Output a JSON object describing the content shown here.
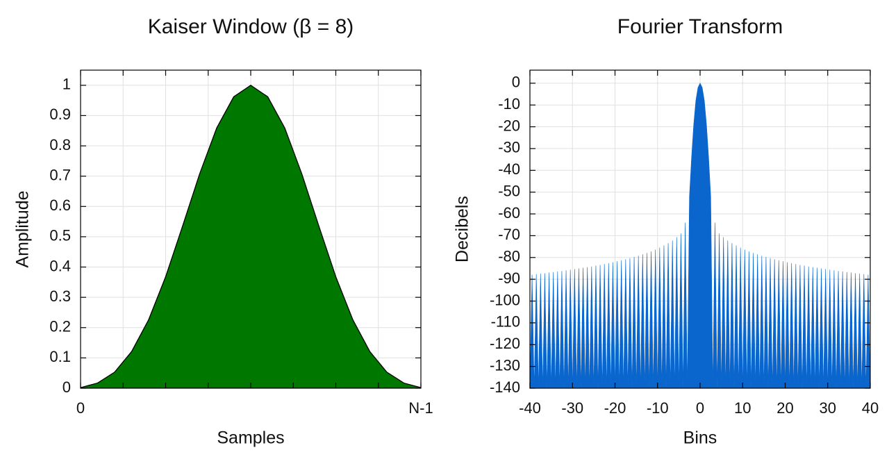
{
  "chart_data": [
    {
      "type": "area",
      "title": "Kaiser Window (β = 8)",
      "xlabel": "Samples",
      "ylabel": "Amplitude",
      "x": [
        0,
        0.05,
        0.1,
        0.15,
        0.2,
        0.25,
        0.3,
        0.35,
        0.4,
        0.45,
        0.5,
        0.55,
        0.6,
        0.65,
        0.7,
        0.75,
        0.8,
        0.85,
        0.9,
        0.95,
        1
      ],
      "values": [
        0.002,
        0.017,
        0.053,
        0.121,
        0.226,
        0.368,
        0.536,
        0.708,
        0.859,
        0.962,
        1,
        0.962,
        0.859,
        0.708,
        0.536,
        0.368,
        0.226,
        0.121,
        0.053,
        0.017,
        0.002
      ],
      "color": "#007800",
      "edge_color": "#000000",
      "xlim": [
        0,
        1
      ],
      "xticks": [
        0,
        0.125,
        0.25,
        0.375,
        0.5,
        0.625,
        0.75,
        0.875,
        1
      ],
      "xtick_labels": [
        "0",
        null,
        null,
        null,
        null,
        null,
        null,
        null,
        "N-1"
      ],
      "ylim": [
        0,
        1.05
      ],
      "yticks": [
        0,
        0.1,
        0.2,
        0.3,
        0.4,
        0.5,
        0.6,
        0.7,
        0.8,
        0.9,
        1
      ],
      "grid": true
    },
    {
      "type": "area",
      "title": "Fourier Transform",
      "xlabel": "Bins",
      "ylabel": "Decibels",
      "x": [
        -40,
        -39.5,
        -39,
        -38.5,
        -38,
        -37.5,
        -37,
        -36.5,
        -36,
        -35.5,
        -35,
        -34.5,
        -34,
        -33.5,
        -33,
        -32.5,
        -32,
        -31.5,
        -31,
        -30.5,
        -30,
        -29.5,
        -29,
        -28.5,
        -28,
        -27.5,
        -27,
        -26.5,
        -26,
        -25.5,
        -25,
        -24.5,
        -24,
        -23.5,
        -23,
        -22.5,
        -22,
        -21.5,
        -21,
        -20.5,
        -20,
        -19.5,
        -19,
        -18.5,
        -18,
        -17.5,
        -17,
        -16.5,
        -16,
        -15.5,
        -15,
        -14.5,
        -14,
        -13.5,
        -13,
        -12.5,
        -12,
        -11.5,
        -11,
        -10.5,
        -10,
        -9.5,
        -9,
        -8.5,
        -8,
        -7.5,
        -7,
        -6.5,
        -6,
        -5.5,
        -5,
        -4.5,
        -4,
        -3.5,
        -3,
        -2.5,
        -2,
        -1.5,
        -1,
        -0.5,
        0,
        0.5,
        1,
        1.5,
        2,
        2.5,
        3,
        3.5,
        4,
        4.5,
        5,
        5.5,
        6,
        6.5,
        7,
        7.5,
        8,
        8.5,
        9,
        9.5,
        10,
        10.5,
        11,
        11.5,
        12,
        12.5,
        13,
        13.5,
        14,
        14.5,
        15,
        15.5,
        16,
        16.5,
        17,
        17.5,
        18,
        18.5,
        19,
        19.5,
        20,
        20.5,
        21,
        21.5,
        22,
        22.5,
        23,
        23.5,
        24,
        24.5,
        25,
        25.5,
        26,
        26.5,
        27,
        27.5,
        28,
        28.5,
        29,
        29.5,
        30,
        30.5,
        31,
        31.5,
        32,
        32.5,
        33,
        33.5,
        34,
        34.5,
        35,
        35.5,
        36,
        36.5,
        37,
        37.5,
        38,
        38.5,
        39,
        39.5,
        40
      ],
      "values": [
        -140,
        -87.9,
        -140,
        -87.6,
        -140,
        -87.4,
        -140,
        -87.2,
        -140,
        -86.9,
        -140,
        -86.7,
        -140,
        -86.4,
        -140,
        -86.2,
        -140,
        -85.9,
        -140,
        -85.6,
        -140,
        -85.3,
        -140,
        -85.0,
        -140,
        -84.7,
        -140,
        -84.4,
        -140,
        -84.1,
        -140,
        -83.7,
        -140,
        -83.4,
        -140,
        -83.0,
        -140,
        -82.6,
        -140,
        -82.2,
        -140,
        -81.7,
        -140,
        -81.3,
        -140,
        -80.8,
        -140,
        -80.3,
        -140,
        -79.7,
        -140,
        -79.2,
        -140,
        -78.5,
        -140,
        -77.9,
        -140,
        -77.2,
        -140,
        -76.4,
        -140,
        -75.5,
        -140,
        -74.5,
        -140,
        -73.4,
        -140,
        -72.2,
        -140,
        -70.7,
        -140,
        -69,
        -140,
        -64,
        -140,
        -52,
        -34,
        -19,
        -8,
        -2,
        0,
        -2,
        -8,
        -19,
        -34,
        -52,
        -140,
        -64,
        -140,
        -69,
        -140,
        -70.7,
        -140,
        -72.2,
        -140,
        -73.4,
        -140,
        -74.5,
        -140,
        -75.5,
        -140,
        -76.4,
        -140,
        -77.2,
        -140,
        -77.9,
        -140,
        -78.5,
        -140,
        -79.2,
        -140,
        -79.7,
        -140,
        -80.3,
        -140,
        -80.8,
        -140,
        -81.3,
        -140,
        -81.7,
        -140,
        -82.2,
        -140,
        -82.6,
        -140,
        -83.0,
        -140,
        -83.4,
        -140,
        -83.7,
        -140,
        -84.1,
        -140,
        -84.4,
        -140,
        -84.7,
        -140,
        -85.0,
        -140,
        -85.3,
        -140,
        -85.6,
        -140,
        -85.9,
        -140,
        -86.2,
        -140,
        -86.4,
        -140,
        -86.7,
        -140,
        -86.9,
        -140,
        -87.2,
        -140,
        -87.4,
        -140,
        -87.6,
        -140,
        -87.9,
        -140
      ],
      "color": "#0a66cc",
      "xlim": [
        -40,
        40
      ],
      "xticks": [
        -40,
        -30,
        -20,
        -10,
        0,
        10,
        20,
        30,
        40
      ],
      "ylim": [
        -140,
        6
      ],
      "yticks": [
        -140,
        -130,
        -120,
        -110,
        -100,
        -90,
        -80,
        -70,
        -60,
        -50,
        -40,
        -30,
        -20,
        -10,
        0
      ],
      "grid": true
    }
  ]
}
